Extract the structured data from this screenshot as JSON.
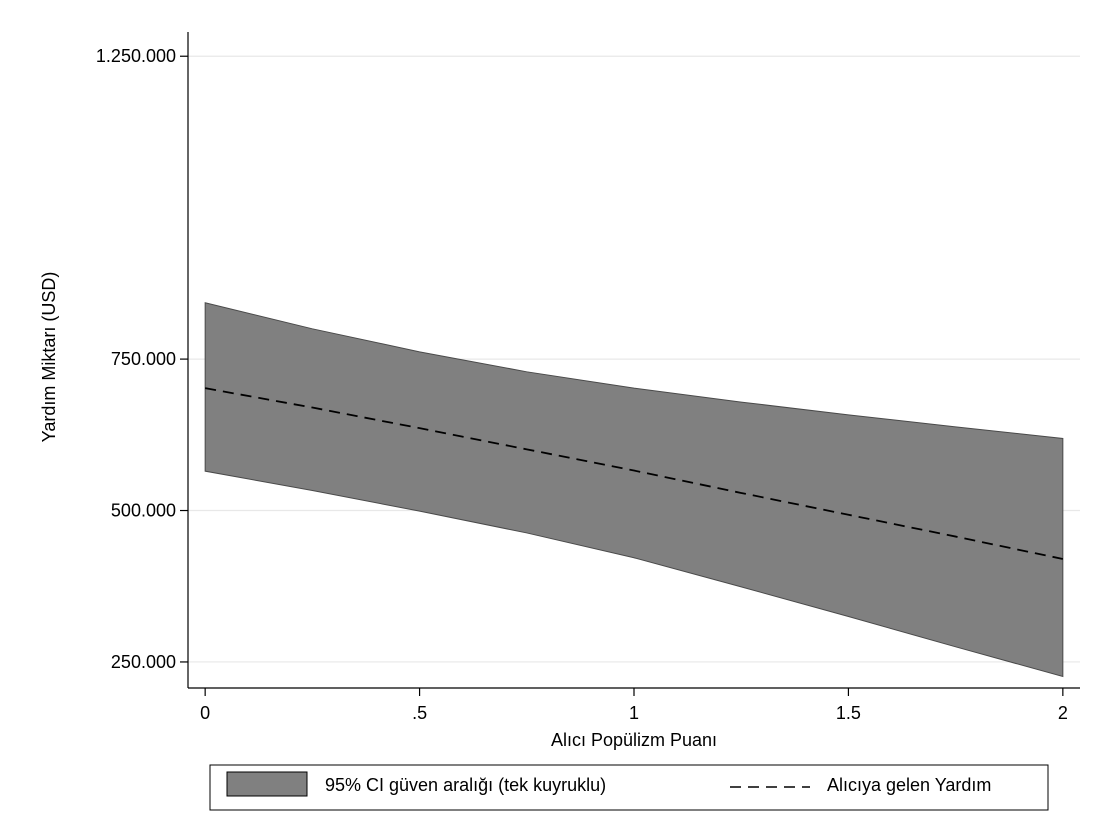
{
  "chart_data": {
    "type": "area",
    "title": "",
    "xlabel": "Alıcı Popülizm Puanı",
    "ylabel": "Yardım Miktarı (USD)",
    "xlim": [
      -0.04,
      2.04
    ],
    "ylim": [
      207000,
      1290000
    ],
    "x_ticks": [
      {
        "value": 0,
        "label": "0"
      },
      {
        "value": 0.5,
        "label": ".5"
      },
      {
        "value": 1,
        "label": "1"
      },
      {
        "value": 1.5,
        "label": "1.5"
      },
      {
        "value": 2,
        "label": "2"
      }
    ],
    "y_ticks": [
      {
        "value": 250000,
        "label": "250.000"
      },
      {
        "value": 500000,
        "label": "500.000"
      },
      {
        "value": 750000,
        "label": "750.000"
      },
      {
        "value": 1250000,
        "label": "1.250.000"
      }
    ],
    "grid": true,
    "x": [
      0,
      0.25,
      0.5,
      0.75,
      1,
      1.25,
      1.5,
      1.75,
      2
    ],
    "series": [
      {
        "name": "95% CI güven aralığı (tek kuyruklu)",
        "kind": "band",
        "color": "#808080",
        "lower": [
          565000,
          533000,
          499000,
          463000,
          422000,
          374000,
          325000,
          275000,
          226000
        ],
        "upper": [
          843000,
          800000,
          762000,
          729000,
          702000,
          679000,
          658000,
          638000,
          619000
        ]
      },
      {
        "name": "Alıcıya gelen Yardım",
        "kind": "line",
        "style": "dashed",
        "color": "#000000",
        "values": [
          702000,
          670000,
          636000,
          601000,
          566000,
          529000,
          493000,
          457000,
          420000
        ]
      }
    ],
    "legend": {
      "position": "bottom",
      "entries": [
        {
          "label": "95% CI güven aralığı (tek kuyruklu)",
          "symbol": "band"
        },
        {
          "label": "Alıcıya gelen Yardım",
          "symbol": "dashed-line"
        }
      ]
    }
  }
}
